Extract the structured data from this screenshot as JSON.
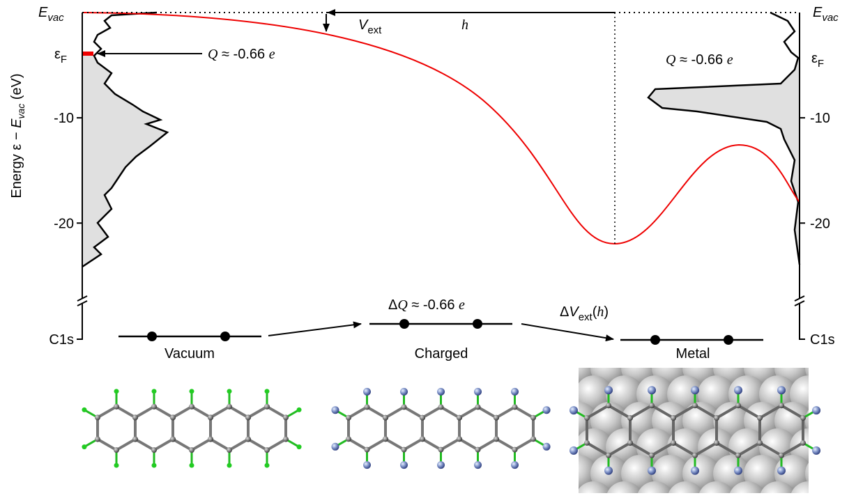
{
  "energy_axis": {
    "title": {
      "pre": "Energy ε − ",
      "main": "E",
      "sub": "vac",
      "post": " (eV)"
    },
    "ylim": [
      -26,
      0
    ],
    "ticks": [
      -10,
      -20
    ],
    "core_level": "C1s"
  },
  "vacuum_level": {
    "main": "E",
    "sub": "vac"
  },
  "fermi_level": {
    "main": "ε",
    "sub": "F"
  },
  "left_charge": {
    "main": "Q",
    "rest": " ≈ -0.66 ",
    "unit": "e"
  },
  "right_charge": {
    "main": "Q",
    "rest": " ≈ -0.66 ",
    "unit": "e"
  },
  "potential": {
    "main": "V",
    "sub": "ext"
  },
  "height": "h",
  "charge_transfer": {
    "pre": "Δ",
    "main": "Q",
    "rest": " ≈ -0.66 ",
    "unit": "e"
  },
  "potential_change": {
    "pre": "Δ",
    "main": "V",
    "sub": "ext",
    "open": "(",
    "arg": "h",
    "close": ")"
  },
  "stages": [
    "Vacuum",
    "Charged",
    "Metal"
  ]
}
